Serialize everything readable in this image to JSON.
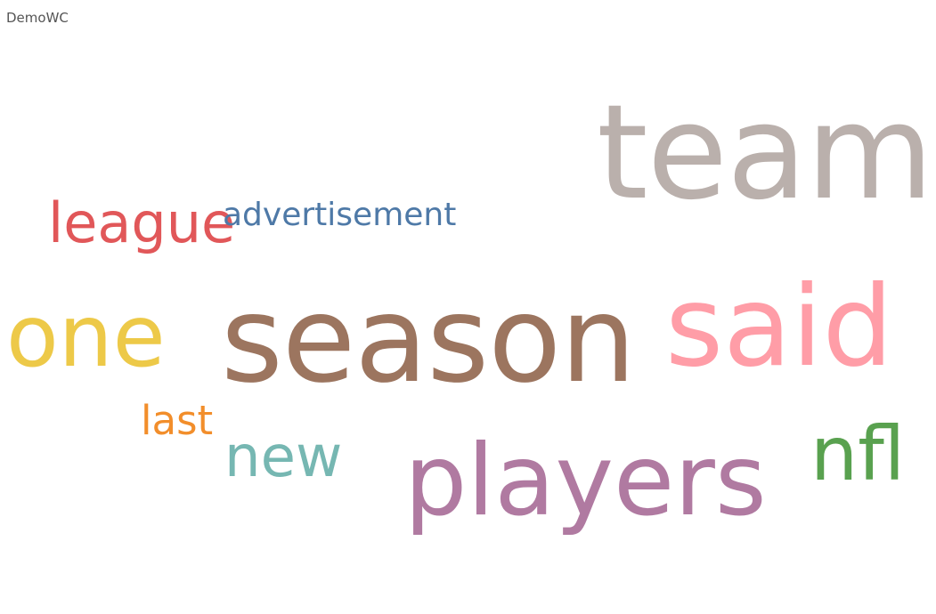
{
  "sheet": {
    "title": "DemoWC"
  },
  "chart_data": {
    "type": "wordcloud",
    "words": [
      {
        "key": "team",
        "text": "team",
        "color": "#bab0ac"
      },
      {
        "key": "season",
        "text": "season",
        "color": "#9c755f"
      },
      {
        "key": "said",
        "text": "said",
        "color": "#ff9da7"
      },
      {
        "key": "players",
        "text": "players",
        "color": "#b07aa1"
      },
      {
        "key": "one",
        "text": "one",
        "color": "#edc948"
      },
      {
        "key": "nfl",
        "text": "nfl",
        "color": "#59a14f"
      },
      {
        "key": "new",
        "text": "new",
        "color": "#76b7b2"
      },
      {
        "key": "league",
        "text": "league",
        "color": "#e15759"
      },
      {
        "key": "advertisement",
        "text": "advertisement",
        "color": "#4e79a7"
      },
      {
        "key": "last",
        "text": "last",
        "color": "#f28e2b"
      }
    ]
  }
}
